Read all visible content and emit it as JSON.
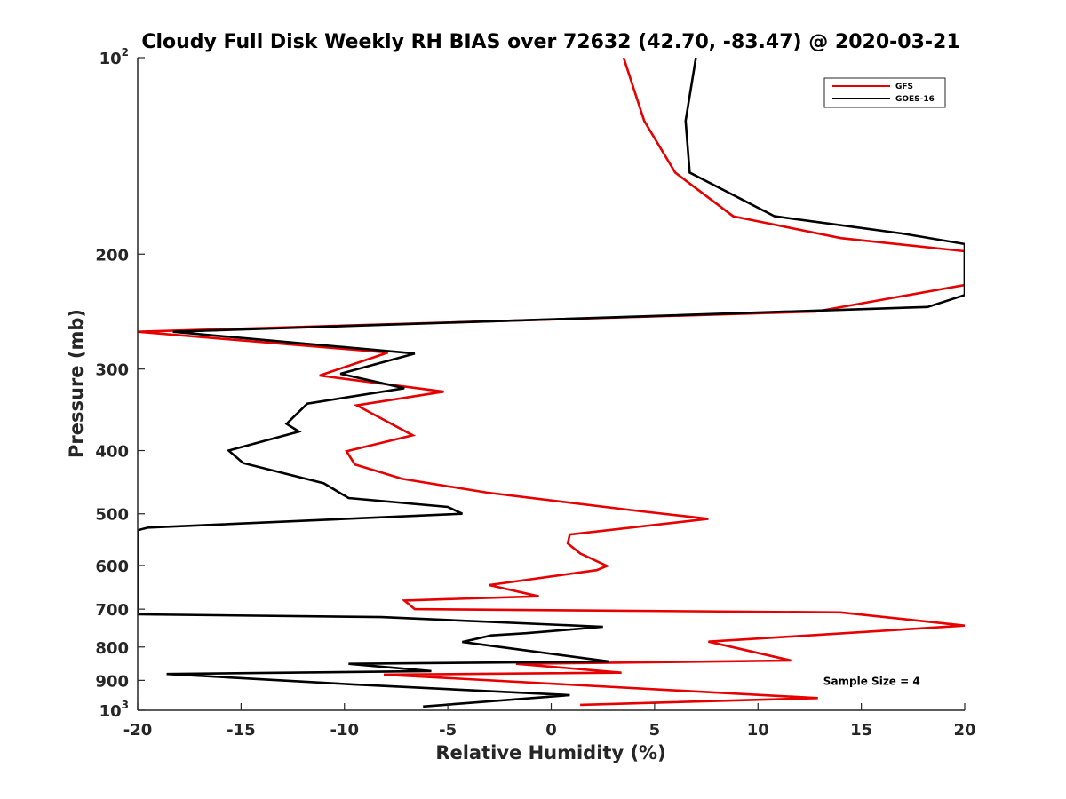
{
  "chart_data": {
    "type": "line",
    "title": "Cloudy Full Disk Weekly RH BIAS over 72632 (42.70, -83.47) @ 2020-03-21",
    "xlabel": "Relative Humidity (%)",
    "ylabel": "Pressure (mb)",
    "xlim": [
      -20,
      20
    ],
    "ylim": [
      100,
      1000
    ],
    "y_scale": "log",
    "y_reversed": true,
    "grid": false,
    "legend_position": "top-right",
    "x_ticks": [
      -20,
      -15,
      -10,
      -5,
      0,
      5,
      10,
      15,
      20
    ],
    "y_ticks": [
      {
        "value": 100,
        "base": "10",
        "exp": "2"
      },
      {
        "value": 200,
        "label": "200"
      },
      {
        "value": 300,
        "label": "300"
      },
      {
        "value": 400,
        "label": "400"
      },
      {
        "value": 500,
        "label": "500"
      },
      {
        "value": 600,
        "label": "600"
      },
      {
        "value": 700,
        "label": "700"
      },
      {
        "value": 800,
        "label": "800"
      },
      {
        "value": 900,
        "label": "900"
      },
      {
        "value": 1000,
        "base": "10",
        "exp": "3"
      }
    ],
    "annotations": [
      {
        "text": "Sample Size = 4",
        "x": 15.5,
        "y": 900
      }
    ],
    "series": [
      {
        "name": "GFS",
        "color": "#e60000",
        "points": [
          [
            3.5,
            100
          ],
          [
            4.5,
            125
          ],
          [
            6.0,
            150
          ],
          [
            8.8,
            175
          ],
          [
            14.0,
            189
          ],
          [
            20,
            198
          ],
          [
            20,
            223
          ],
          [
            12.8,
            245
          ],
          [
            -20,
            263
          ],
          [
            -7.9,
            283
          ],
          [
            -11.2,
            307
          ],
          [
            -5.2,
            325
          ],
          [
            -9.4,
            341
          ],
          [
            -6.7,
            379
          ],
          [
            -9.9,
            401
          ],
          [
            -9.5,
            420
          ],
          [
            -7.2,
            442
          ],
          [
            -3.1,
            464
          ],
          [
            4.2,
            495
          ],
          [
            7.6,
            509
          ],
          [
            0.9,
            538
          ],
          [
            0.8,
            555
          ],
          [
            1.4,
            575
          ],
          [
            2.7,
            601
          ],
          [
            2.2,
            610
          ],
          [
            -3.0,
            643
          ],
          [
            -0.6,
            669
          ],
          [
            -7.1,
            679
          ],
          [
            -6.6,
            700
          ],
          [
            14.0,
            708
          ],
          [
            20,
            742
          ],
          [
            11.0,
            773
          ],
          [
            7.6,
            785
          ],
          [
            11.6,
            839
          ],
          [
            -1.7,
            849
          ],
          [
            3.4,
            876
          ],
          [
            -8.1,
            882
          ],
          [
            12.9,
            958
          ],
          [
            1.4,
            981
          ]
        ]
      },
      {
        "name": "GOES-16",
        "color": "#000000",
        "points": [
          [
            7.0,
            100
          ],
          [
            6.5,
            125
          ],
          [
            6.7,
            150
          ],
          [
            10.8,
            175
          ],
          [
            17.0,
            186
          ],
          [
            20,
            193
          ],
          [
            20,
            231
          ],
          [
            18.2,
            241
          ],
          [
            -18.3,
            263
          ],
          [
            -6.6,
            284
          ],
          [
            -10.2,
            305
          ],
          [
            -7.1,
            321
          ],
          [
            -11.8,
            339
          ],
          [
            -12.8,
            364
          ],
          [
            -12.2,
            374
          ],
          [
            -15.6,
            400
          ],
          [
            -14.9,
            418
          ],
          [
            -11.0,
            449
          ],
          [
            -9.8,
            473
          ],
          [
            -5.0,
            488
          ],
          [
            -4.3,
            500
          ],
          [
            -19.5,
            525
          ],
          [
            -20,
            530
          ],
          [
            -20,
            713
          ],
          [
            -8.2,
            720
          ],
          [
            2.5,
            745
          ],
          [
            -1.2,
            762
          ],
          [
            -2.9,
            768
          ],
          [
            -4.3,
            786
          ],
          [
            2.8,
            842
          ],
          [
            -9.8,
            849
          ],
          [
            -5.8,
            871
          ],
          [
            -18.6,
            880
          ],
          [
            -9.6,
            913
          ],
          [
            0.9,
            948
          ],
          [
            -6.2,
            987
          ]
        ]
      }
    ]
  }
}
